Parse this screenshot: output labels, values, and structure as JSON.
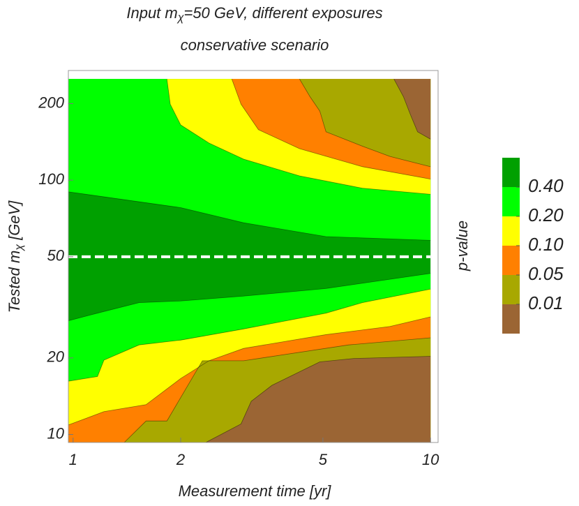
{
  "chart_data": {
    "type": "contour",
    "title": {
      "prefix": "Input m",
      "sub": "χ",
      "suffix": "=50 GeV, different exposures"
    },
    "subtitle": "conservative scenario",
    "xlabel": "Measurement time [yr]",
    "ylabel": {
      "prefix": "Tested m",
      "sub": "χ",
      "suffix": " [GeV]"
    },
    "colorbar_label": "p-value",
    "xscale": "log",
    "yscale": "log",
    "xlim": [
      0.97,
      10.5
    ],
    "ylim": [
      9.3,
      270
    ],
    "xticks": [
      1,
      2,
      5,
      10
    ],
    "yticks": [
      10,
      20,
      50,
      100,
      200
    ],
    "reference_line": 50,
    "color": "#00a000",
    "contours": [
      {
        "level": {
          "value": 0.4,
          "label": "0.40"
        },
        "color": "#00ff00",
        "upper": {
          "x": [
            0.97,
            2.0,
            3.0,
            5.1,
            10
          ],
          "y": [
            90,
            78,
            68,
            60,
            58
          ]
        },
        "lower": {
          "x": [
            0.97,
            1.17,
            1.53,
            2.0,
            3.0,
            5.1,
            10
          ],
          "y": [
            28,
            30,
            33,
            33.5,
            35,
            37.5,
            43
          ]
        }
      },
      {
        "level": {
          "value": 0.2,
          "label": "0.20"
        },
        "color": "#ffff00",
        "upper": {
          "x": [
            1.83,
            1.87,
            2.0,
            2.4,
            3.0,
            4.3,
            6.45,
            10
          ],
          "y": [
            250,
            199,
            165,
            140,
            121,
            104,
            93,
            88
          ]
        },
        "lower": {
          "x": [
            0.97,
            1.17,
            1.22,
            1.53,
            2.0,
            3.0,
            5.1,
            6.45,
            10
          ],
          "y": [
            16.2,
            16.9,
            19.6,
            22.5,
            23.5,
            26,
            30,
            33,
            37.3
          ]
        }
      },
      {
        "level": {
          "value": 0.1,
          "label": "0.10"
        },
        "color": "#ff8000",
        "upper": {
          "x": [
            2.78,
            2.95,
            3.3,
            4.3,
            6.45,
            10
          ],
          "y": [
            250,
            199,
            158,
            133,
            113,
            101
          ]
        },
        "lower": {
          "x": [
            0.97,
            1.22,
            1.6,
            2.0,
            2.4,
            3.0,
            5.1,
            7.7,
            10
          ],
          "y": [
            10.9,
            12.3,
            13.1,
            16.6,
            19.5,
            21.8,
            24.7,
            26.6,
            29
          ]
        }
      },
      {
        "level": {
          "value": 0.05,
          "label": "0.05"
        },
        "color": "#a8a800",
        "upper": {
          "x": [
            4.3,
            4.6,
            4.9,
            5.1,
            6.45,
            7.7,
            10
          ],
          "y": [
            250,
            213,
            187,
            155,
            136,
            124,
            113
          ]
        },
        "lower": {
          "x": [
            1.39,
            1.6,
            1.83,
            2.3,
            3.0,
            5.9,
            10
          ],
          "y": [
            9.3,
            11.3,
            11.3,
            19.5,
            19.5,
            22.5,
            24
          ]
        }
      },
      {
        "level": {
          "value": 0.01,
          "label": "0.01"
        },
        "color": "#9b6534",
        "upper": {
          "x": [
            7.9,
            8.4,
            8.8,
            9.2,
            10
          ],
          "y": [
            250,
            213,
            180,
            155,
            145
          ]
        },
        "lower": {
          "x": [
            2.35,
            2.95,
            3.15,
            3.6,
            4.9,
            6.1,
            10
          ],
          "y": [
            9.3,
            11,
            13.5,
            15.6,
            19.3,
            19.9,
            20.3
          ]
        }
      }
    ]
  }
}
